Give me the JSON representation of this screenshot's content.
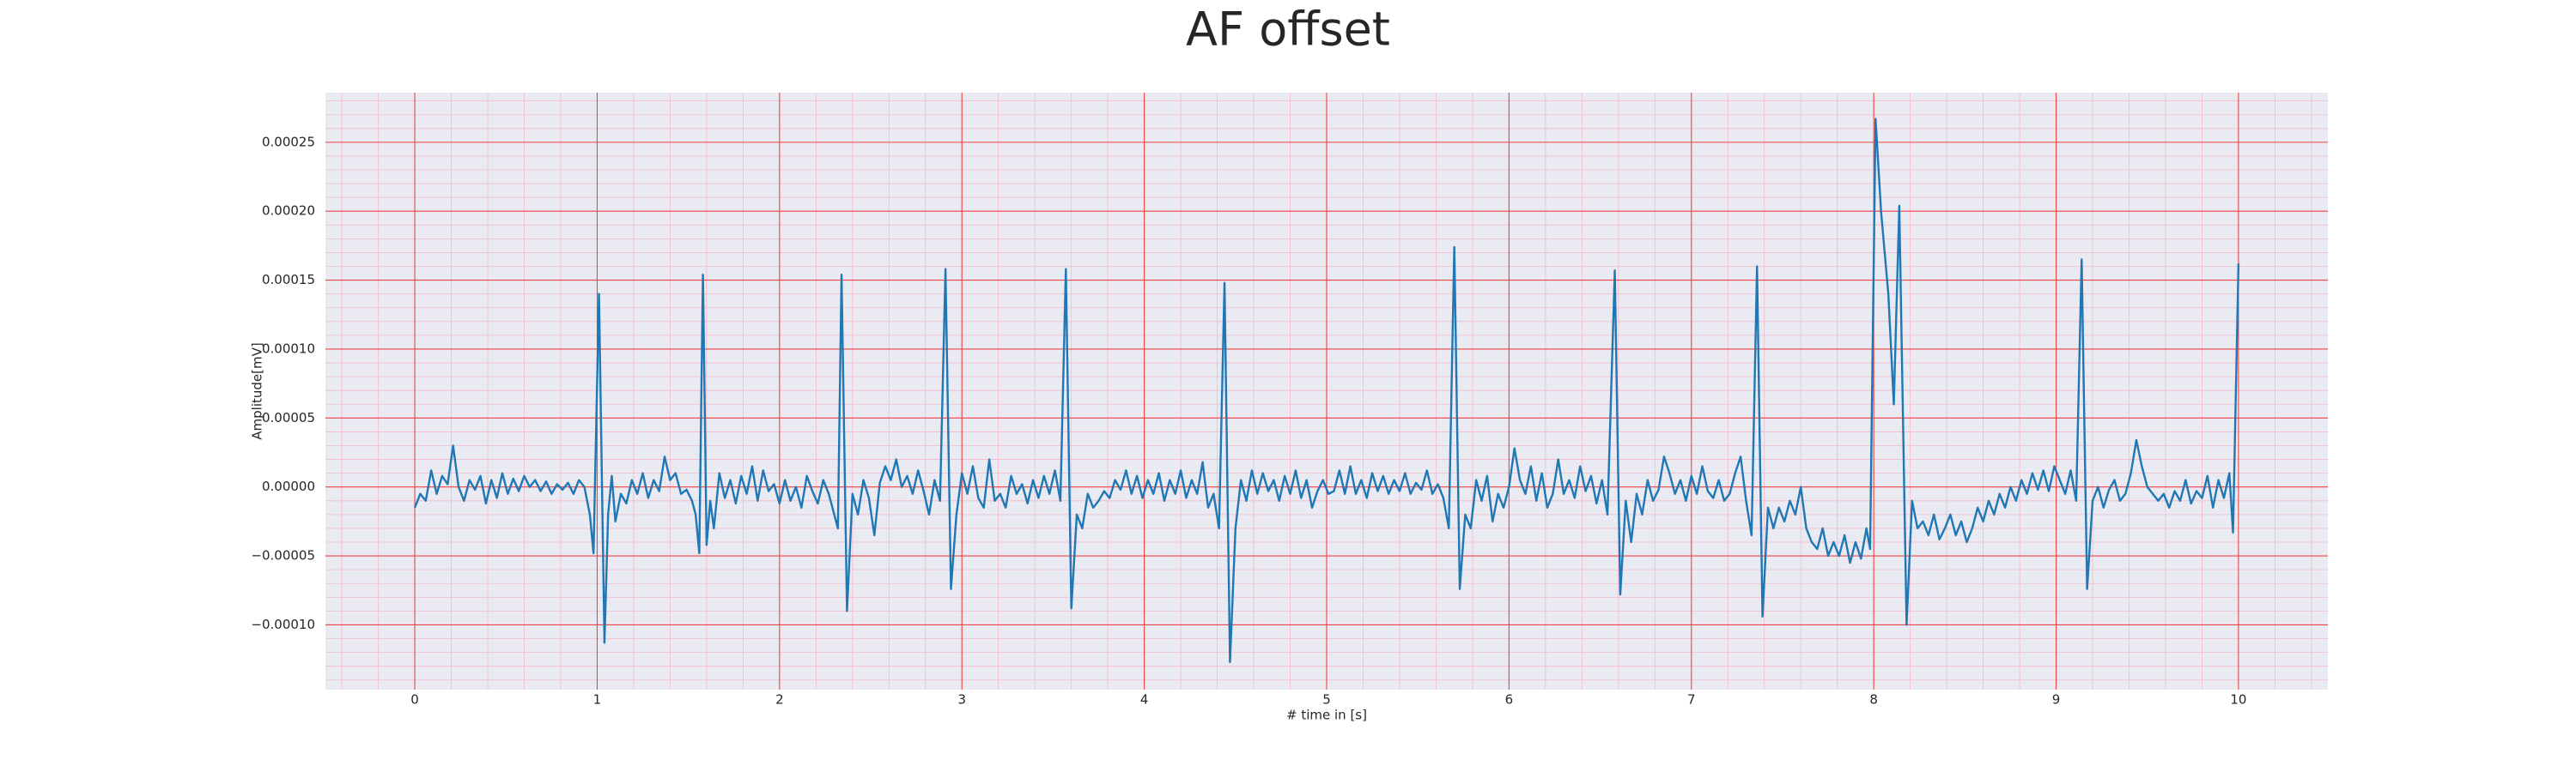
{
  "chart_data": {
    "type": "line",
    "title": "AF offset",
    "x_label": "# time in [s]",
    "y_label": "Amplitude[mV]",
    "color": "#1f77b4",
    "grid": true,
    "minor_grid": true,
    "xlim": [
      -0.49,
      10.49
    ],
    "ylim": [
      -0.000147,
      0.000286
    ],
    "xticks": [
      0,
      1,
      2,
      3,
      4,
      5,
      6,
      7,
      8,
      9,
      10
    ],
    "yticks": [
      {
        "value": -0.0001,
        "label": "−0.00010"
      },
      {
        "value": -5e-05,
        "label": "−0.00005"
      },
      {
        "value": 0,
        "label": "0.00000"
      },
      {
        "value": 5e-05,
        "label": "0.00005"
      },
      {
        "value": 0.0001,
        "label": "0.00010"
      },
      {
        "value": 0.00015,
        "label": "0.00015"
      },
      {
        "value": 0.0002,
        "label": "0.00020"
      },
      0.00025
    ],
    "x": [
      0,
      0.03,
      0.06,
      0.09,
      0.12,
      0.15,
      0.18,
      0.21,
      0.24,
      0.27,
      0.3,
      0.33,
      0.36,
      0.39,
      0.42,
      0.45,
      0.48,
      0.51,
      0.54,
      0.57,
      0.6,
      0.63,
      0.66,
      0.69,
      0.72,
      0.75,
      0.78,
      0.81,
      0.84,
      0.87,
      0.9,
      0.93,
      0.96,
      0.98,
      1.01,
      1.04,
      1.06,
      1.08,
      1.1,
      1.13,
      1.16,
      1.19,
      1.22,
      1.25,
      1.28,
      1.31,
      1.34,
      1.37,
      1.4,
      1.43,
      1.46,
      1.49,
      1.52,
      1.54,
      1.56,
      1.58,
      1.6,
      1.62,
      1.64,
      1.67,
      1.7,
      1.73,
      1.76,
      1.79,
      1.82,
      1.85,
      1.88,
      1.91,
      1.94,
      1.97,
      2.0,
      2.03,
      2.06,
      2.09,
      2.12,
      2.15,
      2.18,
      2.21,
      2.24,
      2.27,
      2.3,
      2.32,
      2.34,
      2.37,
      2.4,
      2.43,
      2.46,
      2.49,
      2.52,
      2.55,
      2.58,
      2.61,
      2.64,
      2.67,
      2.7,
      2.73,
      2.76,
      2.79,
      2.82,
      2.85,
      2.88,
      2.91,
      2.94,
      2.97,
      3.0,
      3.03,
      3.06,
      3.09,
      3.12,
      3.15,
      3.18,
      3.21,
      3.24,
      3.27,
      3.3,
      3.33,
      3.36,
      3.39,
      3.42,
      3.45,
      3.48,
      3.51,
      3.54,
      3.57,
      3.6,
      3.63,
      3.66,
      3.69,
      3.72,
      3.75,
      3.78,
      3.81,
      3.84,
      3.87,
      3.9,
      3.93,
      3.96,
      3.99,
      4.02,
      4.05,
      4.08,
      4.11,
      4.14,
      4.17,
      4.2,
      4.23,
      4.26,
      4.29,
      4.32,
      4.35,
      4.38,
      4.41,
      4.44,
      4.47,
      4.5,
      4.53,
      4.56,
      4.59,
      4.62,
      4.65,
      4.68,
      4.71,
      4.74,
      4.77,
      4.8,
      4.83,
      4.86,
      4.89,
      4.92,
      4.95,
      4.98,
      5.01,
      5.04,
      5.07,
      5.1,
      5.13,
      5.16,
      5.19,
      5.22,
      5.25,
      5.28,
      5.31,
      5.34,
      5.37,
      5.4,
      5.43,
      5.46,
      5.49,
      5.52,
      5.55,
      5.58,
      5.61,
      5.64,
      5.67,
      5.7,
      5.73,
      5.76,
      5.79,
      5.82,
      5.85,
      5.88,
      5.91,
      5.94,
      5.97,
      6.0,
      6.03,
      6.06,
      6.09,
      6.12,
      6.15,
      6.18,
      6.21,
      6.24,
      6.27,
      6.3,
      6.33,
      6.36,
      6.39,
      6.42,
      6.45,
      6.48,
      6.51,
      6.54,
      6.58,
      6.61,
      6.64,
      6.67,
      6.7,
      6.73,
      6.76,
      6.79,
      6.82,
      6.85,
      6.88,
      6.91,
      6.94,
      6.97,
      7.0,
      7.03,
      7.06,
      7.09,
      7.12,
      7.15,
      7.18,
      7.21,
      7.24,
      7.27,
      7.3,
      7.33,
      7.36,
      7.39,
      7.42,
      7.45,
      7.48,
      7.51,
      7.54,
      7.57,
      7.6,
      7.63,
      7.66,
      7.69,
      7.72,
      7.75,
      7.78,
      7.81,
      7.84,
      7.87,
      7.9,
      7.93,
      7.96,
      7.98,
      8.01,
      8.04,
      8.08,
      8.11,
      8.14,
      8.18,
      8.21,
      8.24,
      8.27,
      8.3,
      8.33,
      8.36,
      8.39,
      8.42,
      8.45,
      8.48,
      8.51,
      8.54,
      8.57,
      8.6,
      8.63,
      8.66,
      8.69,
      8.72,
      8.75,
      8.78,
      8.81,
      8.84,
      8.87,
      8.9,
      8.93,
      8.96,
      8.99,
      9.02,
      9.05,
      9.08,
      9.11,
      9.14,
      9.17,
      9.2,
      9.23,
      9.26,
      9.29,
      9.32,
      9.35,
      9.38,
      9.41,
      9.44,
      9.47,
      9.5,
      9.53,
      9.56,
      9.59,
      9.62,
      9.65,
      9.68,
      9.71,
      9.74,
      9.77,
      9.8,
      9.83,
      9.86,
      9.89,
      9.92,
      9.95,
      9.97,
      10.0
    ],
    "values": [
      -1.5e-05,
      -5e-06,
      -1e-05,
      1.2e-05,
      -5e-06,
      8e-06,
      2e-06,
      3e-05,
      0,
      -1e-05,
      5e-06,
      -2e-06,
      8e-06,
      -1.2e-05,
      5e-06,
      -8e-06,
      1e-05,
      -5e-06,
      6e-06,
      -3e-06,
      8e-06,
      0,
      5e-06,
      -3e-06,
      4e-06,
      -5e-06,
      2e-06,
      -2e-06,
      3e-06,
      -5e-06,
      5e-06,
      0,
      -2e-05,
      -4.8e-05,
      0.00014,
      -0.000113,
      -2e-05,
      8e-06,
      -2.5e-05,
      -5e-06,
      -1.2e-05,
      5e-06,
      -5e-06,
      1e-05,
      -8e-06,
      5e-06,
      -3e-06,
      2.2e-05,
      5e-06,
      1e-05,
      -5e-06,
      -2e-06,
      -1e-05,
      -2e-05,
      -4.8e-05,
      0.000154,
      -4.2e-05,
      -1e-05,
      -3e-05,
      1e-05,
      -8e-06,
      5e-06,
      -1.2e-05,
      8e-06,
      -5e-06,
      1.5e-05,
      -1e-05,
      1.2e-05,
      -3e-06,
      2e-06,
      -1.2e-05,
      5e-06,
      -1e-05,
      0,
      -1.5e-05,
      8e-06,
      -3e-06,
      -1.2e-05,
      5e-06,
      -5e-06,
      -2e-05,
      -3e-05,
      0.000154,
      -9e-05,
      -5e-06,
      -2e-05,
      5e-06,
      -8e-06,
      -3.5e-05,
      3e-06,
      1.5e-05,
      5e-06,
      2e-05,
      0,
      8e-06,
      -5e-06,
      1.2e-05,
      -3e-06,
      -2e-05,
      5e-06,
      -1e-05,
      0.000158,
      -7.4e-05,
      -2e-05,
      1e-05,
      -5e-06,
      1.5e-05,
      -8e-06,
      -1.5e-05,
      2e-05,
      -1e-05,
      -5e-06,
      -1.5e-05,
      8e-06,
      -5e-06,
      2e-06,
      -1.2e-05,
      5e-06,
      -8e-06,
      8e-06,
      -5e-06,
      1.2e-05,
      -1e-05,
      0.000158,
      -8.8e-05,
      -2e-05,
      -3e-05,
      -5e-06,
      -1.5e-05,
      -1e-05,
      -3e-06,
      -8e-06,
      5e-06,
      -2e-06,
      1.2e-05,
      -5e-06,
      8e-06,
      -8e-06,
      5e-06,
      -5e-06,
      1e-05,
      -1e-05,
      5e-06,
      -5e-06,
      1.2e-05,
      -8e-06,
      5e-06,
      -5e-06,
      1.8e-05,
      -1.5e-05,
      -5e-06,
      -3e-05,
      0.000148,
      -0.000127,
      -3e-05,
      5e-06,
      -1e-05,
      1.2e-05,
      -5e-06,
      1e-05,
      -3e-06,
      5e-06,
      -1e-05,
      8e-06,
      -5e-06,
      1.2e-05,
      -8e-06,
      5e-06,
      -1.5e-05,
      -3e-06,
      5e-06,
      -5e-06,
      -3e-06,
      1.2e-05,
      -5e-06,
      1.5e-05,
      -5e-06,
      5e-06,
      -8e-06,
      1e-05,
      -3e-06,
      8e-06,
      -5e-06,
      5e-06,
      -3e-06,
      1e-05,
      -5e-06,
      3e-06,
      -2e-06,
      1.2e-05,
      -5e-06,
      2e-06,
      -8e-06,
      -3e-05,
      0.000174,
      -7.4e-05,
      -2e-05,
      -3e-05,
      5e-06,
      -1e-05,
      8e-06,
      -2.5e-05,
      -5e-06,
      -1.5e-05,
      0,
      2.8e-05,
      5e-06,
      -5e-06,
      1.5e-05,
      -1e-05,
      1e-05,
      -1.5e-05,
      -5e-06,
      2e-05,
      -5e-06,
      5e-06,
      -8e-06,
      1.5e-05,
      -3e-06,
      8e-06,
      -1.2e-05,
      5e-06,
      -2e-05,
      0.000157,
      -7.8e-05,
      -1e-05,
      -4e-05,
      -5e-06,
      -2e-05,
      5e-06,
      -1e-05,
      -2e-06,
      2.2e-05,
      1e-05,
      -5e-06,
      5e-06,
      -1e-05,
      8e-06,
      -5e-06,
      1.5e-05,
      -3e-06,
      -8e-06,
      5e-06,
      -1e-05,
      -5e-06,
      1e-05,
      2.2e-05,
      -1e-05,
      -3.5e-05,
      0.00016,
      -9.4e-05,
      -1.5e-05,
      -3e-05,
      -1.5e-05,
      -2.5e-05,
      -1e-05,
      -2e-05,
      0,
      -3e-05,
      -4e-05,
      -4.5e-05,
      -3e-05,
      -5e-05,
      -4e-05,
      -5e-05,
      -3.5e-05,
      -5.5e-05,
      -4e-05,
      -5.2e-05,
      -3e-05,
      -4.5e-05,
      0.000267,
      0.0002,
      0.00014,
      6e-05,
      0.000204,
      -0.0001,
      -1e-05,
      -3e-05,
      -2.5e-05,
      -3.5e-05,
      -2e-05,
      -3.8e-05,
      -3e-05,
      -2e-05,
      -3.5e-05,
      -2.5e-05,
      -4e-05,
      -3e-05,
      -1.5e-05,
      -2.5e-05,
      -1e-05,
      -2e-05,
      -5e-06,
      -1.5e-05,
      0,
      -1e-05,
      5e-06,
      -5e-06,
      1e-05,
      -2e-06,
      1.2e-05,
      -3e-06,
      1.5e-05,
      5e-06,
      -5e-06,
      1.2e-05,
      -1e-05,
      0.000165,
      -7.4e-05,
      -1e-05,
      0,
      -1.5e-05,
      -2e-06,
      5e-06,
      -1e-05,
      -5e-06,
      1e-05,
      3.4e-05,
      1.5e-05,
      0,
      -5e-06,
      -1e-05,
      -5e-06,
      -1.5e-05,
      -3e-06,
      -1e-05,
      5e-06,
      -1.2e-05,
      -3e-06,
      -8e-06,
      8e-06,
      -1.5e-05,
      5e-06,
      -8e-06,
      1e-05,
      -3.3e-05,
      0.000162
    ]
  }
}
